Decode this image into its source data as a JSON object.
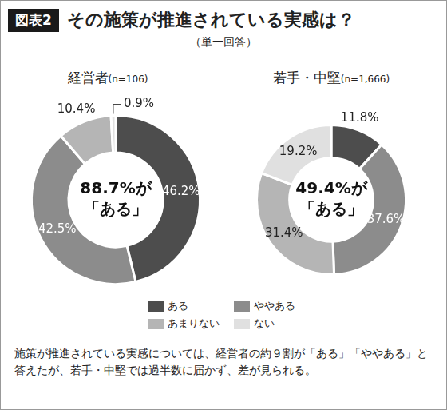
{
  "header": {
    "figure_label": "図表2",
    "title": "その施策が推進されている実感は？",
    "subtitle": "（単一回答）"
  },
  "chart_data": [
    {
      "type": "doughnut",
      "title": "経営者",
      "subtitle": "(n=106)",
      "categories": [
        "ある",
        "ややある",
        "あまりない",
        "ない"
      ],
      "values": [
        46.2,
        42.5,
        10.4,
        0.9
      ],
      "value_labels": [
        "46.2%",
        "42.5%",
        "10.4%",
        "0.9%"
      ],
      "colors": [
        "#4d4d4d",
        "#8c8c8c",
        "#b5b5b5",
        "#e0e0e0"
      ],
      "data_labels": true,
      "legend": "bottom",
      "annotations": [
        "88.7%が",
        "「ある」"
      ]
    },
    {
      "type": "doughnut",
      "title": "若手・中堅",
      "subtitle": "(n=1,666)",
      "categories": [
        "ある",
        "ややある",
        "あまりない",
        "ない"
      ],
      "values": [
        11.8,
        37.6,
        31.4,
        19.2
      ],
      "value_labels": [
        "11.8%",
        "37.6%",
        "31.4%",
        "19.2%"
      ],
      "colors": [
        "#4d4d4d",
        "#8c8c8c",
        "#b5b5b5",
        "#e0e0e0"
      ],
      "data_labels": true,
      "annotations": [
        "49.4%が",
        "「ある」"
      ]
    }
  ],
  "caption": "施策が推進されている実感については、経営者の約９割が「ある」「ややある」と答えたが、若手・中堅では過半数に届かず、差が見られる。"
}
